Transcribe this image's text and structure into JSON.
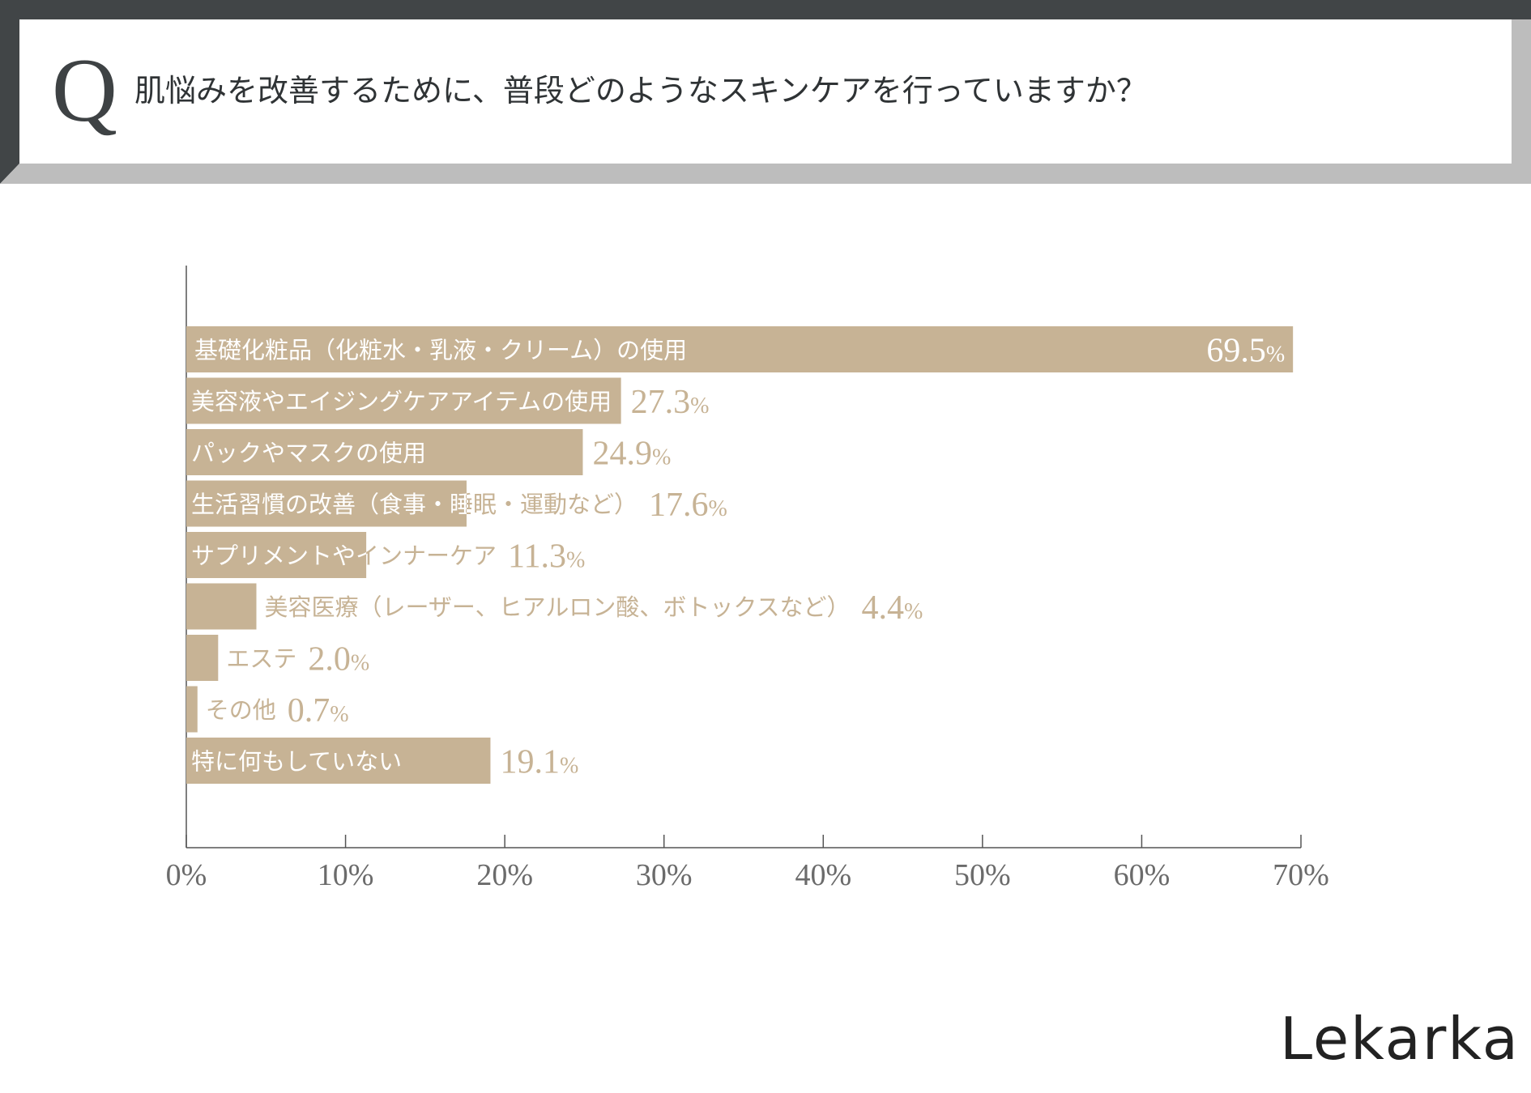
{
  "question": {
    "letter": "Q",
    "text": "肌悩みを改善するために、普段どのようなスキンケアを行っていますか？"
  },
  "chart_data": {
    "type": "bar",
    "orientation": "horizontal",
    "categories": [
      "基礎化粧品（化粧水・乳液・クリーム）の使用",
      "美容液やエイジングケアアイテムの使用",
      "パックやマスクの使用",
      "生活習慣の改善（食事・睡眠・運動など）",
      "サプリメントやインナーケア",
      "美容医療（レーザー、ヒアルロン酸、ボトックスなど）",
      "エステ",
      "その他",
      "特に何もしていない"
    ],
    "values": [
      69.5,
      27.3,
      24.9,
      17.6,
      11.3,
      4.4,
      2.0,
      0.7,
      19.1
    ],
    "value_labels": [
      "69.5",
      "27.3",
      "24.9",
      "17.6",
      "11.3",
      "4.4",
      "2.0",
      "0.7",
      "19.1"
    ],
    "value_unit": "%",
    "xlim": [
      0,
      70
    ],
    "x_ticks": [
      0,
      10,
      20,
      30,
      40,
      50,
      60,
      70
    ],
    "x_tick_labels": [
      "0%",
      "10%",
      "20%",
      "30%",
      "40%",
      "50%",
      "60%",
      "70%"
    ],
    "grid": false,
    "colors": {
      "bar": "#c7b395",
      "label_on_bar": "#ffffff",
      "label_off_bar": "#c7b395",
      "axis": "#555555",
      "tick_label": "#6b6b6b"
    }
  },
  "brand": {
    "name": "Lekarka"
  },
  "colors": {
    "header_dark": "#414547",
    "header_light": "#bdbdbd"
  }
}
